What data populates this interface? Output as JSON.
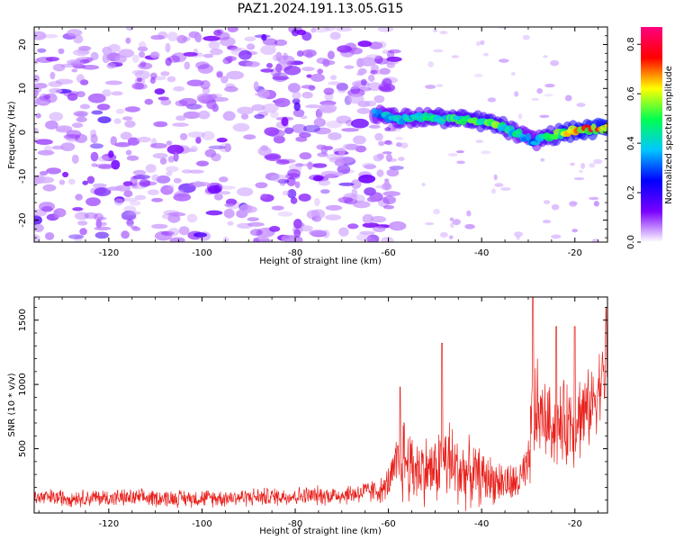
{
  "title": "PAZ1.2024.191.13.05.G15",
  "chart_data": [
    {
      "type": "heatmap",
      "xlabel": "Height of straight line (km)",
      "ylabel": "Frequency (Hz)",
      "xlim": [
        -136,
        -13
      ],
      "ylim": [
        -25,
        24
      ],
      "xticks": [
        -120,
        -100,
        -80,
        -60,
        -40,
        -20
      ],
      "yticks": [
        -20,
        -10,
        0,
        10,
        20
      ],
      "colorbar": {
        "label": "Normalized spectral amplitude",
        "range": [
          0,
          0.87
        ],
        "ticks": [
          "0.0",
          "0.2",
          "0.4",
          "0.6",
          "0.8"
        ],
        "colormap": [
          "#ffffff",
          "#7a00ff",
          "#0000ff",
          "#00c8ff",
          "#00ff50",
          "#ffff00",
          "#ff0000",
          "#ff0080"
        ]
      },
      "signal_track": [
        {
          "x": -63,
          "y": 4.5,
          "amp": 0.35
        },
        {
          "x": -58,
          "y": 3.0,
          "amp": 0.42
        },
        {
          "x": -52,
          "y": 3.5,
          "amp": 0.45
        },
        {
          "x": -48,
          "y": 3.2,
          "amp": 0.5
        },
        {
          "x": -44,
          "y": 2.8,
          "amp": 0.5
        },
        {
          "x": -40,
          "y": 2.5,
          "amp": 0.55
        },
        {
          "x": -36,
          "y": 1.5,
          "amp": 0.55
        },
        {
          "x": -32,
          "y": -0.5,
          "amp": 0.45
        },
        {
          "x": -29,
          "y": -2.0,
          "amp": 0.35
        },
        {
          "x": -26,
          "y": -1.0,
          "amp": 0.5
        },
        {
          "x": -22,
          "y": 0.0,
          "amp": 0.65
        },
        {
          "x": -18,
          "y": 0.5,
          "amp": 0.7
        },
        {
          "x": -15,
          "y": 0.8,
          "amp": 0.75
        },
        {
          "x": -13,
          "y": 1.0,
          "amp": 0.7
        }
      ]
    },
    {
      "type": "line",
      "xlabel": "Height of straight line (km)",
      "ylabel": "SNR (10 * v/v)",
      "xlim": [
        -136,
        -13
      ],
      "ylim": [
        0,
        1680
      ],
      "xticks": [
        -120,
        -100,
        -80,
        -60,
        -40,
        -20
      ],
      "yticks": [
        500,
        1000,
        1500
      ],
      "color": "#e8211c",
      "envelope": [
        {
          "x": -136,
          "base": 120,
          "spread": 80
        },
        {
          "x": -100,
          "base": 115,
          "spread": 80
        },
        {
          "x": -70,
          "base": 140,
          "spread": 90
        },
        {
          "x": -61,
          "base": 180,
          "spread": 120
        },
        {
          "x": -59,
          "base": 300,
          "spread": 200
        },
        {
          "x": -57,
          "base": 450,
          "spread": 450
        },
        {
          "x": -55,
          "base": 350,
          "spread": 350
        },
        {
          "x": -50,
          "base": 330,
          "spread": 300
        },
        {
          "x": -48,
          "base": 420,
          "spread": 450
        },
        {
          "x": -45,
          "base": 330,
          "spread": 350
        },
        {
          "x": -38,
          "base": 260,
          "spread": 220
        },
        {
          "x": -33,
          "base": 220,
          "spread": 180
        },
        {
          "x": -30,
          "base": 320,
          "spread": 250
        },
        {
          "x": -29,
          "base": 800,
          "spread": 600
        },
        {
          "x": -27,
          "base": 750,
          "spread": 350
        },
        {
          "x": -24,
          "base": 650,
          "spread": 350
        },
        {
          "x": -20,
          "base": 750,
          "spread": 450
        },
        {
          "x": -17,
          "base": 800,
          "spread": 350
        },
        {
          "x": -13,
          "base": 1150,
          "spread": 350
        }
      ],
      "peaks": [
        {
          "x": -57.5,
          "y": 980
        },
        {
          "x": -48.5,
          "y": 1320
        },
        {
          "x": -29,
          "y": 1680
        },
        {
          "x": -24,
          "y": 1450
        },
        {
          "x": -20,
          "y": 1450
        },
        {
          "x": -13.3,
          "y": 1600
        }
      ]
    }
  ]
}
